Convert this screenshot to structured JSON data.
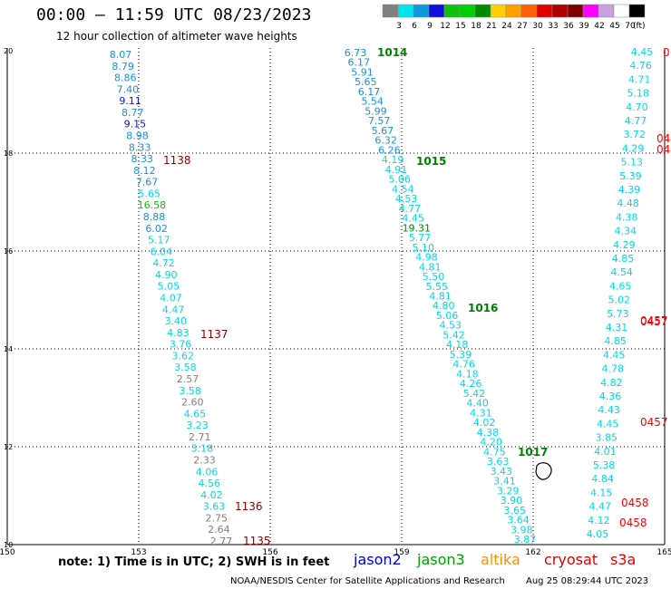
{
  "title": "00:00 – 11:59 UTC 08/23/2023",
  "subtitle": "12 hour collection of altimeter wave heights",
  "scale": {
    "labels": [
      "3",
      "6",
      "9",
      "12",
      "15",
      "18",
      "21",
      "24",
      "27",
      "30",
      "33",
      "36",
      "39",
      "42",
      "45",
      "70",
      "(ft)"
    ],
    "colors": [
      "#808080",
      "#00e5ee",
      "#0a9ae0",
      "#1010e0",
      "#10c010",
      "#00d000",
      "#008c00",
      "#ffd000",
      "#ff9f00",
      "#ff6000",
      "#e00000",
      "#b00000",
      "#800000",
      "#ff00ff",
      "#c8a0e0",
      "#ffffff",
      "#000000"
    ]
  },
  "axes": {
    "lon_labels": [
      "150",
      "153",
      "156",
      "159",
      "162",
      "165"
    ],
    "lat_labels": [
      "20",
      "18",
      "16",
      "14",
      "12",
      "10"
    ]
  },
  "note": "note: 1) Time is in UTC; 2) SWH is in feet",
  "satellites": [
    {
      "name": "jason2",
      "color": "#0000e0"
    },
    {
      "name": "jason3",
      "color": "#00a000"
    },
    {
      "name": "altika",
      "color": "#ff9000"
    },
    {
      "name": "cryosat",
      "color": "#e00000"
    },
    {
      "name": "s3a",
      "color": "#e00000"
    }
  ],
  "credit": "NOAA/NESDIS Center for Satellite Applications and Research",
  "timestamp": "Aug 25 08:29:44 UTC 2023",
  "tracks": {
    "track1": {
      "values": [
        "8.07",
        "8.79",
        "8.86",
        "7.40",
        "9.11",
        "8.77",
        "9.15",
        "8.98",
        "8.33",
        "8.33",
        "8.12",
        "7.67",
        "5.65",
        "16.58",
        "8.88",
        "6.02",
        "5.17",
        "6.04",
        "4.72",
        "4.90",
        "5.05",
        "4.07",
        "4.47",
        "3.40",
        "4.83",
        "3.76",
        "3.62",
        "3.58",
        "2.57",
        "3.58",
        "2.60",
        "4.65",
        "3.23",
        "2.71",
        "3.18",
        "2.33",
        "4.06",
        "4.56",
        "4.02",
        "3.63",
        "2.75",
        "2.64",
        "2.77"
      ],
      "colors": [
        "#1a8fe0",
        "#1a8fe0",
        "#1a8fe0",
        "#1a8fe0",
        "#1010e0",
        "#1a8fe0",
        "#1010e0",
        "#1a8fe0",
        "#1a8fe0",
        "#1a8fe0",
        "#1a8fe0",
        "#1a8fe0",
        "#00d8e8",
        "#10c010",
        "#1a8fe0",
        "#1a8fe0",
        "#00d8e8",
        "#00d8e8",
        "#00d8e8",
        "#00d8e8",
        "#00d8e8",
        "#00d8e8",
        "#00d8e8",
        "#00d8e8",
        "#00d8e8",
        "#00d8e8",
        "#00d8e8",
        "#00d8e8",
        "#808080",
        "#00d8e8",
        "#808080",
        "#00d8e8",
        "#00d8e8",
        "#808080",
        "#00d8e8",
        "#808080",
        "#00d8e8",
        "#00d8e8",
        "#00d8e8",
        "#00d8e8",
        "#808080",
        "#808080",
        "#808080"
      ],
      "time_labels": [
        "1138",
        "1137",
        "1136",
        "1135"
      ]
    },
    "track2": {
      "values": [
        "6.73",
        "6.17",
        "5.91",
        "5.65",
        "6.17",
        "5.54",
        "5.99",
        "7.57",
        "5.67",
        "6.32",
        "6.26",
        "4.19",
        "4.91",
        "5.06",
        "4.54",
        "4.53",
        "4.77",
        "4.45",
        "19.31",
        "5.77",
        "5.10",
        "4.98",
        "4.81",
        "5.50",
        "5.55",
        "4.81",
        "4.80",
        "5.06",
        "4.53",
        "5.42",
        "4.18",
        "5.39",
        "4.76",
        "4.18",
        "4.26",
        "5.42",
        "4.40",
        "4.31",
        "4.02",
        "4.38",
        "4.20",
        "4.75",
        "3.63",
        "3.43",
        "3.41",
        "3.29",
        "3.90",
        "3.65",
        "3.64",
        "3.98",
        "3.87"
      ],
      "colors": [
        "#1a8fe0",
        "#1a8fe0",
        "#1a8fe0",
        "#1a8fe0",
        "#1a8fe0",
        "#1a8fe0",
        "#1a8fe0",
        "#1a8fe0",
        "#1a8fe0",
        "#1a8fe0",
        "#1a8fe0",
        "#00d8e8",
        "#00d8e8",
        "#00d8e8",
        "#00d8e8",
        "#00d8e8",
        "#00d8e8",
        "#00d8e8",
        "#008c00",
        "#00d8e8",
        "#00d8e8",
        "#00d8e8",
        "#00d8e8",
        "#00d8e8",
        "#00d8e8",
        "#00d8e8",
        "#00d8e8",
        "#00d8e8",
        "#00d8e8",
        "#00d8e8",
        "#00d8e8",
        "#00d8e8",
        "#00d8e8",
        "#00d8e8",
        "#00d8e8",
        "#00d8e8",
        "#00d8e8",
        "#00d8e8",
        "#00d8e8",
        "#00d8e8",
        "#00d8e8",
        "#00d8e8",
        "#00d8e8",
        "#00d8e8",
        "#00d8e8",
        "#00d8e8",
        "#00d8e8",
        "#00d8e8",
        "#00d8e8",
        "#00d8e8",
        "#00d8e8"
      ],
      "time_labels": [
        "1014",
        "1015",
        "1016",
        "1017"
      ]
    },
    "track3": {
      "values": [
        "4.45",
        "4.76",
        "4.71",
        "5.18",
        "4.70",
        "4.77",
        "3.72",
        "4.29",
        "5.13",
        "5.39",
        "4.39",
        "4.48",
        "4.38",
        "4.34",
        "4.29",
        "4.85",
        "4.54",
        "4.65",
        "5.02",
        "5.73",
        "4.31",
        "4.85",
        "4.45",
        "4.78",
        "4.82",
        "4.36",
        "4.43",
        "4.45",
        "3.85",
        "4.01",
        "5.38",
        "4.84",
        "4.15",
        "4.47",
        "4.12",
        "4.05"
      ],
      "time_labels": [
        "0",
        "04",
        "04",
        "0457",
        "0457",
        "0457",
        "0458",
        "0458"
      ]
    }
  }
}
